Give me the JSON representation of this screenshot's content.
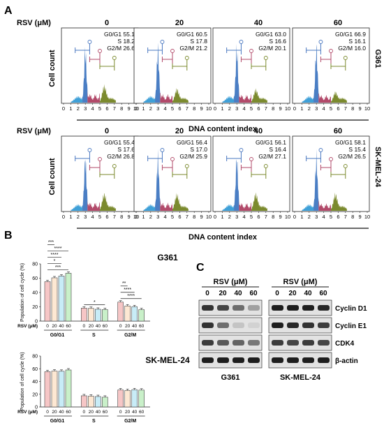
{
  "panel_letters": {
    "a": "A",
    "b": "B",
    "c": "C"
  },
  "panel_a": {
    "rsv_label": "RSV (μM)",
    "doses": [
      "0",
      "20",
      "40",
      "60"
    ],
    "y_label": "Cell count",
    "x_label": "DNA content index",
    "x_ticks": [
      "0",
      "1",
      "2",
      "3",
      "4",
      "5",
      "6",
      "7",
      "8",
      "9",
      "10"
    ],
    "rows": [
      {
        "cell_line": "G361",
        "stats": [
          {
            "g0g1": "G0/G1 55.1",
            "s": "S 18.2",
            "g2m": "G2/M 26.6"
          },
          {
            "g0g1": "G0/G1 60.5",
            "s": "S 17.8",
            "g2m": "G2/M 21.2"
          },
          {
            "g0g1": "G0/G1 63.0",
            "s": "S 16.6",
            "g2m": "G2/M 20.1"
          },
          {
            "g0g1": "G0/G1 66.9",
            "s": "S 16.1",
            "g2m": "G2/M 16.0"
          }
        ]
      },
      {
        "cell_line": "SK-MEL-24",
        "stats": [
          {
            "g0g1": "G0/G1 55.4",
            "s": "S 17.6",
            "g2m": "G2/M 26.8"
          },
          {
            "g0g1": "G0/G1 56.4",
            "s": "S 17.0",
            "g2m": "G2/M 25.9"
          },
          {
            "g0g1": "G0/G1 56.1",
            "s": "S 16.4",
            "g2m": "G2/M 27.1"
          },
          {
            "g0g1": "G0/G1 58.1",
            "s": "S 15.4",
            "g2m": "G2/M 26.5"
          }
        ]
      }
    ],
    "colors": {
      "g1": "#4a7ec4",
      "s": "#b24a6a",
      "g2m": "#7b8a2e",
      "debris": "#3fa0d8",
      "gate": "#8a5aa8"
    }
  },
  "chart_data": [
    {
      "type": "bar",
      "title": "G361",
      "ylabel": "Population of cell cycle (%)",
      "xlabel": "RSV (μM)",
      "ylim": [
        0,
        80
      ],
      "yticks": [
        "0",
        "20",
        "40",
        "60",
        "80"
      ],
      "groups": [
        "G0/G1",
        "S",
        "G2/M"
      ],
      "series_doses": [
        "0",
        "20",
        "40",
        "60"
      ],
      "values": [
        [
          55.1,
          60.5,
          63.0,
          66.9
        ],
        [
          18.2,
          17.8,
          16.6,
          16.1
        ],
        [
          26.6,
          21.2,
          20.1,
          16.0
        ]
      ],
      "significance": [
        {
          "label": "***",
          "group": 0,
          "from": 0,
          "to": 3
        },
        {
          "label": "*",
          "group": 0,
          "from": 0,
          "to": 2
        },
        {
          "label": "****",
          "group": 0,
          "from": 0,
          "to": 2
        },
        {
          "label": "****",
          "group": 0,
          "from": 0,
          "to": 3
        },
        {
          "label": "***",
          "group": 0,
          "from": 0,
          "to": 1
        },
        {
          "label": "*",
          "group": 1,
          "from": 0,
          "to": 3
        },
        {
          "label": "****",
          "group": 2,
          "from": 0,
          "to": 3
        },
        {
          "label": "****",
          "group": 2,
          "from": 0,
          "to": 2
        },
        {
          "label": "**",
          "group": 2,
          "from": 0,
          "to": 1
        }
      ],
      "bar_colors": [
        "#f6c6c6",
        "#fde8d3",
        "#c8ecf7",
        "#c9f0c9"
      ]
    },
    {
      "type": "bar",
      "title": "SK-MEL-24",
      "ylabel": "Population of cell cycle (%)",
      "xlabel": "RSV (μM)",
      "ylim": [
        0,
        80
      ],
      "yticks": [
        "0",
        "20",
        "40",
        "60",
        "80"
      ],
      "groups": [
        "G0/G1",
        "S",
        "G2/M"
      ],
      "series_doses": [
        "0",
        "20",
        "40",
        "60"
      ],
      "values": [
        [
          55.4,
          56.4,
          56.1,
          58.1
        ],
        [
          17.6,
          17.0,
          16.4,
          15.4
        ],
        [
          26.8,
          25.9,
          27.1,
          26.5
        ]
      ],
      "significance": [],
      "bar_colors": [
        "#f6c6c6",
        "#fde8d3",
        "#c8ecf7",
        "#c9f0c9"
      ]
    }
  ],
  "panel_c": {
    "rsv_label": "RSV (μM)",
    "doses": [
      "0",
      "20",
      "40",
      "60"
    ],
    "blots": [
      {
        "cell_line": "G361",
        "intensities": [
          [
            0.85,
            0.75,
            0.55,
            0.3
          ],
          [
            0.85,
            0.55,
            0.12,
            0.05
          ],
          [
            0.8,
            0.65,
            0.6,
            0.5
          ],
          [
            0.95,
            0.95,
            0.95,
            0.95
          ]
        ]
      },
      {
        "cell_line": "SK-MEL-24",
        "intensities": [
          [
            0.95,
            0.95,
            0.95,
            0.9
          ],
          [
            0.95,
            0.9,
            0.85,
            0.8
          ],
          [
            0.8,
            0.75,
            0.8,
            0.75
          ],
          [
            0.95,
            0.95,
            0.95,
            0.95
          ]
        ]
      }
    ],
    "proteins": [
      "Cyclin D1",
      "Cyclin E1",
      "CDK4",
      "β-actin"
    ]
  }
}
